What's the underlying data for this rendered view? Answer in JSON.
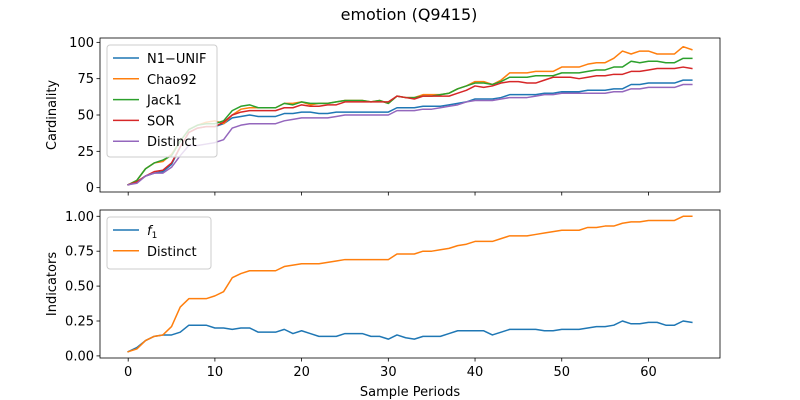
{
  "figure": {
    "title": "emotion (Q9415)"
  },
  "colors": {
    "N1-UNIF": "#1f77b4",
    "Chao92": "#ff7f0e",
    "Jack1": "#2ca02c",
    "SOR": "#d62728",
    "Distinct": "#9467bd",
    "f1": "#1f77b4",
    "Distinct2": "#ff7f0e"
  },
  "chart_data": [
    {
      "type": "line",
      "ylabel": "Cardinality",
      "xlabel": "",
      "xlim": [
        -3.25,
        68.25
      ],
      "ylim": [
        -3,
        103
      ],
      "yticks": [
        0,
        25,
        50,
        75,
        100
      ],
      "ytick_labels": [
        "0",
        "25",
        "50",
        "75",
        "100"
      ],
      "xticks": [
        0,
        10,
        20,
        30,
        40,
        50,
        60
      ],
      "legend_position": "upper-left",
      "x": [
        0,
        1,
        2,
        3,
        4,
        5,
        6,
        7,
        8,
        9,
        10,
        11,
        12,
        13,
        14,
        15,
        16,
        17,
        18,
        19,
        20,
        21,
        22,
        23,
        24,
        25,
        26,
        27,
        28,
        29,
        30,
        31,
        32,
        33,
        34,
        35,
        36,
        37,
        38,
        39,
        40,
        41,
        42,
        43,
        44,
        45,
        46,
        47,
        48,
        49,
        50,
        51,
        52,
        53,
        54,
        55,
        56,
        57,
        58,
        59,
        60,
        61,
        62,
        63,
        64,
        65
      ],
      "series": [
        {
          "name": "N1−UNIF",
          "color_key": "N1-UNIF",
          "values": [
            2,
            4,
            8,
            10,
            11,
            16,
            28,
            38,
            41,
            42,
            42,
            44,
            48,
            49,
            50,
            49,
            49,
            49,
            51,
            51,
            52,
            52,
            51,
            51,
            52,
            52,
            52,
            52,
            52,
            52,
            52,
            55,
            55,
            55,
            56,
            56,
            56,
            57,
            58,
            59,
            61,
            61,
            61,
            62,
            64,
            64,
            64,
            64,
            65,
            65,
            66,
            66,
            66,
            67,
            67,
            67,
            68,
            68,
            71,
            71,
            72,
            72,
            72,
            72,
            74,
            74
          ]
        },
        {
          "name": "Chao92",
          "color_key": "Chao92",
          "values": [
            2,
            5,
            13,
            17,
            18,
            23,
            32,
            40,
            43,
            45,
            46,
            44,
            50,
            54,
            55,
            55,
            55,
            55,
            58,
            58,
            59,
            57,
            58,
            58,
            59,
            60,
            60,
            60,
            59,
            60,
            58,
            63,
            62,
            62,
            64,
            64,
            64,
            65,
            68,
            70,
            73,
            73,
            71,
            74,
            79,
            79,
            79,
            80,
            80,
            80,
            83,
            83,
            83,
            85,
            86,
            86,
            89,
            94,
            92,
            94,
            94,
            92,
            92,
            92,
            97,
            95
          ]
        },
        {
          "name": "Jack1",
          "color_key": "Jack1",
          "values": [
            2,
            5,
            13,
            17,
            19,
            22,
            32,
            40,
            43,
            44,
            44,
            46,
            53,
            56,
            57,
            55,
            55,
            55,
            58,
            57,
            59,
            58,
            58,
            58,
            59,
            60,
            60,
            60,
            59,
            60,
            58,
            63,
            62,
            62,
            63,
            63,
            64,
            65,
            68,
            70,
            72,
            72,
            71,
            73,
            76,
            76,
            76,
            77,
            77,
            77,
            79,
            79,
            79,
            80,
            81,
            81,
            83,
            83,
            87,
            86,
            87,
            87,
            86,
            86,
            89,
            89
          ]
        },
        {
          "name": "SOR",
          "color_key": "SOR",
          "values": [
            2,
            4,
            8,
            11,
            12,
            17,
            28,
            38,
            41,
            42,
            42,
            45,
            50,
            52,
            53,
            53,
            53,
            53,
            55,
            55,
            57,
            56,
            56,
            57,
            57,
            59,
            59,
            59,
            59,
            59,
            59,
            63,
            62,
            61,
            63,
            63,
            63,
            63,
            65,
            67,
            70,
            69,
            70,
            72,
            73,
            73,
            72,
            72,
            74,
            76,
            76,
            76,
            75,
            76,
            77,
            77,
            78,
            78,
            80,
            80,
            81,
            82,
            82,
            82,
            83,
            82
          ]
        },
        {
          "name": "Distinct",
          "color_key": "Distinct",
          "values": [
            2,
            3,
            8,
            10,
            10,
            14,
            22,
            29,
            29,
            30,
            31,
            33,
            41,
            43,
            44,
            44,
            44,
            44,
            46,
            47,
            48,
            48,
            48,
            48,
            49,
            50,
            50,
            50,
            50,
            50,
            50,
            53,
            53,
            53,
            54,
            54,
            55,
            56,
            57,
            59,
            60,
            60,
            60,
            61,
            62,
            62,
            62,
            63,
            64,
            64,
            65,
            65,
            65,
            65,
            65,
            65,
            66,
            66,
            68,
            68,
            69,
            69,
            69,
            69,
            71,
            71
          ]
        }
      ]
    },
    {
      "type": "line",
      "ylabel": "Indicators",
      "xlabel": "Sample Periods",
      "xlim": [
        -3.25,
        68.25
      ],
      "ylim": [
        -0.015,
        1.045
      ],
      "yticks": [
        0,
        0.25,
        0.5,
        0.75,
        1.0
      ],
      "ytick_labels": [
        "0.00",
        "0.25",
        "0.50",
        "0.75",
        "1.00"
      ],
      "xticks": [
        0,
        10,
        20,
        30,
        40,
        50,
        60
      ],
      "xtick_labels": [
        "0",
        "10",
        "20",
        "30",
        "40",
        "50",
        "60"
      ],
      "legend_position": "upper-left",
      "x": [
        0,
        1,
        2,
        3,
        4,
        5,
        6,
        7,
        8,
        9,
        10,
        11,
        12,
        13,
        14,
        15,
        16,
        17,
        18,
        19,
        20,
        21,
        22,
        23,
        24,
        25,
        26,
        27,
        28,
        29,
        30,
        31,
        32,
        33,
        34,
        35,
        36,
        37,
        38,
        39,
        40,
        41,
        42,
        43,
        44,
        45,
        46,
        47,
        48,
        49,
        50,
        51,
        52,
        53,
        54,
        55,
        56,
        57,
        58,
        59,
        60,
        61,
        62,
        63,
        64,
        65
      ],
      "series": [
        {
          "name": "f1",
          "legend_base": "f",
          "legend_sub": "1",
          "color_key": "f1",
          "values": [
            0.03,
            0.06,
            0.11,
            0.14,
            0.15,
            0.15,
            0.17,
            0.22,
            0.22,
            0.22,
            0.2,
            0.2,
            0.19,
            0.2,
            0.2,
            0.17,
            0.17,
            0.17,
            0.19,
            0.16,
            0.18,
            0.16,
            0.14,
            0.14,
            0.14,
            0.16,
            0.16,
            0.16,
            0.14,
            0.14,
            0.12,
            0.15,
            0.13,
            0.12,
            0.14,
            0.14,
            0.14,
            0.16,
            0.18,
            0.18,
            0.18,
            0.18,
            0.15,
            0.17,
            0.19,
            0.19,
            0.19,
            0.19,
            0.18,
            0.18,
            0.19,
            0.19,
            0.19,
            0.2,
            0.21,
            0.21,
            0.22,
            0.25,
            0.23,
            0.23,
            0.24,
            0.24,
            0.22,
            0.22,
            0.25,
            0.24
          ]
        },
        {
          "name": "Distinct",
          "color_key": "Distinct2",
          "values": [
            0.03,
            0.05,
            0.11,
            0.14,
            0.15,
            0.21,
            0.35,
            0.41,
            0.41,
            0.41,
            0.43,
            0.46,
            0.56,
            0.59,
            0.61,
            0.61,
            0.61,
            0.61,
            0.64,
            0.65,
            0.66,
            0.66,
            0.66,
            0.67,
            0.68,
            0.69,
            0.69,
            0.69,
            0.69,
            0.69,
            0.69,
            0.73,
            0.73,
            0.73,
            0.75,
            0.75,
            0.76,
            0.77,
            0.79,
            0.8,
            0.82,
            0.82,
            0.82,
            0.84,
            0.86,
            0.86,
            0.86,
            0.87,
            0.88,
            0.89,
            0.9,
            0.9,
            0.9,
            0.92,
            0.92,
            0.93,
            0.93,
            0.95,
            0.96,
            0.96,
            0.97,
            0.97,
            0.97,
            0.97,
            1.0,
            1.0
          ]
        }
      ]
    }
  ]
}
